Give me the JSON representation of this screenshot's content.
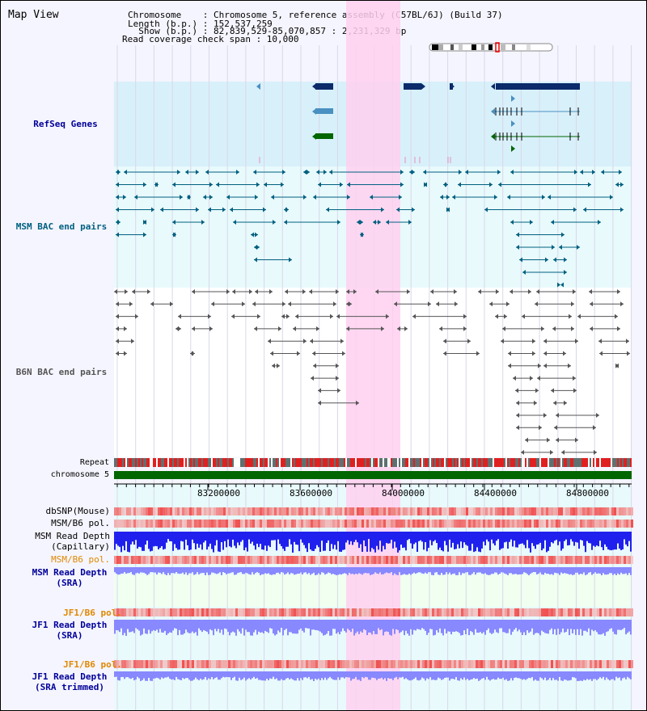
{
  "header": {
    "title": "Map View",
    "info_lines": [
      "Chromosome    : Chromosome 5, reference assembly (C57BL/6J) (Build 37)",
      "Length (b.p.) : 152,537,259",
      "  Show (b.p.) : 82,839,529-85,070,857 : 2,231,329 bp",
      "Read coverage check span : 10,000"
    ]
  },
  "tracks": {
    "refseq": "RefSeq Genes",
    "msm_bac": "MSM BAC end pairs",
    "b6n_bac": "B6N BAC end pairs",
    "repeat": "Repeat",
    "chromosome": "chromosome 5",
    "dbsnp": "dbSNP(Mouse)",
    "msm_b6_pol": "MSM/B6 pol.",
    "msm_read_depth_cap_1": "MSM Read Depth",
    "msm_read_depth_cap_2": "(Capillary)",
    "msm_b6_pol_2": "MSM/B6 pol.",
    "msm_read_depth_sra_1": "MSM Read Depth",
    "msm_read_depth_sra_2": "(SRA)",
    "jf1_b6_pol": "JF1/B6 pol.",
    "jf1_read_depth_sra_1": "JF1 Read Depth",
    "jf1_read_depth_sra_2": "(SRA)",
    "jf1_b6_pol_2": "JF1/B6 pol.",
    "jf1_read_depth_trim_1": "JF1 Read Depth",
    "jf1_read_depth_trim_2": "(SRA trimmed)"
  },
  "ruler": {
    "ticks": [
      "83200000",
      "83600000",
      "84000000",
      "84400000",
      "84800000"
    ]
  },
  "colors": {
    "refseq_bg": "#d8f0fa",
    "gene_dark": "#0a2a6a",
    "gene_mid": "#4a90c0",
    "gene_green": "#006600",
    "msm_bac": "#006080",
    "b6n_bac": "#555555",
    "highlight": "#ffd0f0",
    "label_blue": "#000099",
    "label_teal": "#006080",
    "label_orange": "#e08800",
    "depth_blue": "#2020ee",
    "depth_light": "#8888ff"
  }
}
